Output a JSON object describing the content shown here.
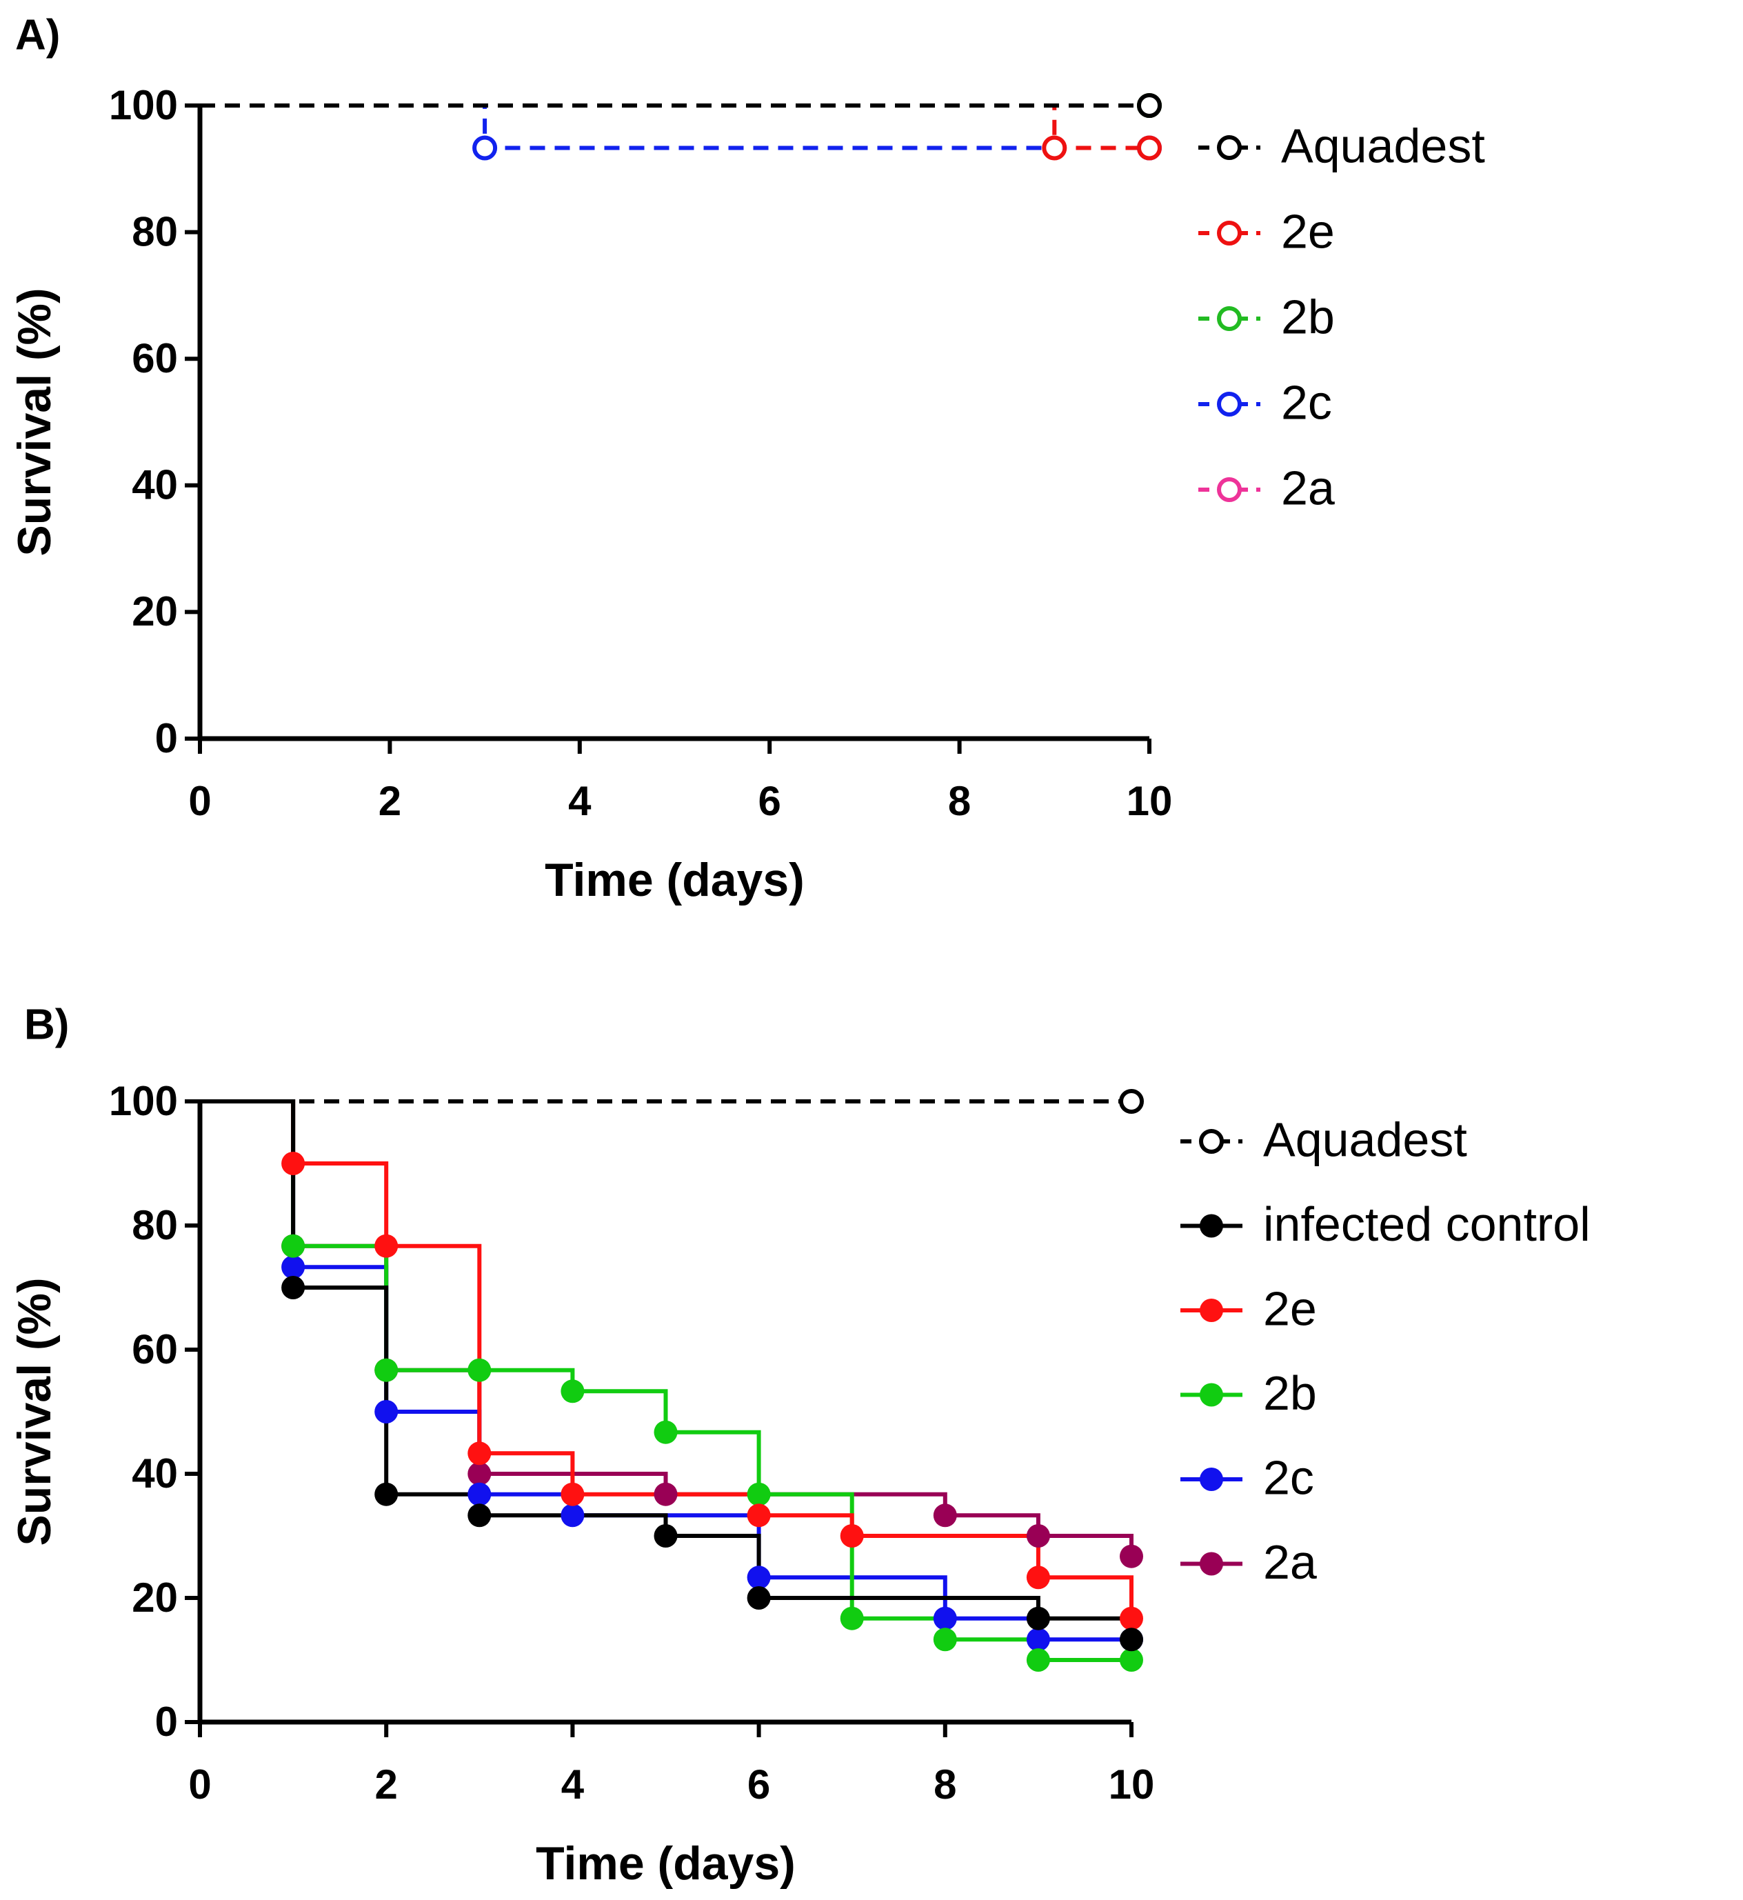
{
  "chart_data": [
    {
      "type": "step",
      "panel_label": "A)",
      "xlabel": "Time (days)",
      "ylabel": "Survival (%)",
      "xlim": [
        0,
        10
      ],
      "ylim": [
        0,
        100
      ],
      "xticks": [
        0,
        2,
        4,
        6,
        8,
        10
      ],
      "yticks": [
        0,
        20,
        40,
        60,
        80,
        100
      ],
      "series": [
        {
          "name": "Aquadest",
          "color": "#000000",
          "dashed": true,
          "filled": false,
          "x": [
            0,
            10
          ],
          "values": [
            100,
            100
          ]
        },
        {
          "name": "2e",
          "color": "#ee1111",
          "dashed": true,
          "filled": false,
          "x": [
            0,
            9,
            10
          ],
          "values": [
            100,
            93.3,
            93.3
          ]
        },
        {
          "name": "2b",
          "color": "#22bb22",
          "dashed": true,
          "filled": false,
          "x": [
            0,
            10
          ],
          "values": [
            100,
            100
          ]
        },
        {
          "name": "2c",
          "color": "#1122ee",
          "dashed": true,
          "filled": false,
          "x": [
            0,
            3,
            10
          ],
          "values": [
            100,
            93.3,
            93.3
          ]
        },
        {
          "name": "2a",
          "color": "#ee3399",
          "dashed": true,
          "filled": false,
          "x": [
            0,
            10
          ],
          "values": [
            100,
            100
          ]
        }
      ]
    },
    {
      "type": "step",
      "panel_label": "B)",
      "xlabel": "Time (days)",
      "ylabel": "Survival (%)",
      "xlim": [
        0,
        10
      ],
      "ylim": [
        0,
        100
      ],
      "xticks": [
        0,
        2,
        4,
        6,
        8,
        10
      ],
      "yticks": [
        0,
        20,
        40,
        60,
        80,
        100
      ],
      "series": [
        {
          "name": "Aquadest",
          "color": "#000000",
          "dashed": true,
          "filled": false,
          "x": [
            0,
            10
          ],
          "values": [
            100,
            100
          ]
        },
        {
          "name": "infected control",
          "color": "#000000",
          "dashed": false,
          "filled": true,
          "x": [
            0,
            1,
            2,
            3,
            5,
            6,
            9,
            10
          ],
          "values": [
            100,
            70,
            36.7,
            33.3,
            30,
            20,
            16.7,
            13.3
          ]
        },
        {
          "name": "2e",
          "color": "#ff1111",
          "dashed": false,
          "filled": true,
          "x": [
            0,
            1,
            2,
            3,
            4,
            6,
            7,
            9,
            10
          ],
          "values": [
            100,
            90,
            76.7,
            43.3,
            36.7,
            33.3,
            30,
            23.3,
            16.7
          ]
        },
        {
          "name": "2b",
          "color": "#11cc11",
          "dashed": false,
          "filled": true,
          "x": [
            0,
            1,
            2,
            3,
            4,
            5,
            6,
            7,
            8,
            9,
            10
          ],
          "values": [
            100,
            76.7,
            56.7,
            56.7,
            53.3,
            46.7,
            36.7,
            16.7,
            13.3,
            10,
            10
          ]
        },
        {
          "name": "2c",
          "color": "#1111ee",
          "dashed": false,
          "filled": true,
          "x": [
            0,
            1,
            2,
            3,
            4,
            6,
            8,
            9,
            10
          ],
          "values": [
            100,
            73.3,
            50,
            36.7,
            33.3,
            23.3,
            16.7,
            13.3,
            13.3
          ]
        },
        {
          "name": "2a",
          "color": "#990055",
          "dashed": false,
          "filled": true,
          "x": [
            0,
            1,
            2,
            3,
            5,
            8,
            9,
            10
          ],
          "values": [
            100,
            76.7,
            56.7,
            40,
            36.7,
            33.3,
            30,
            26.7
          ]
        }
      ]
    }
  ]
}
